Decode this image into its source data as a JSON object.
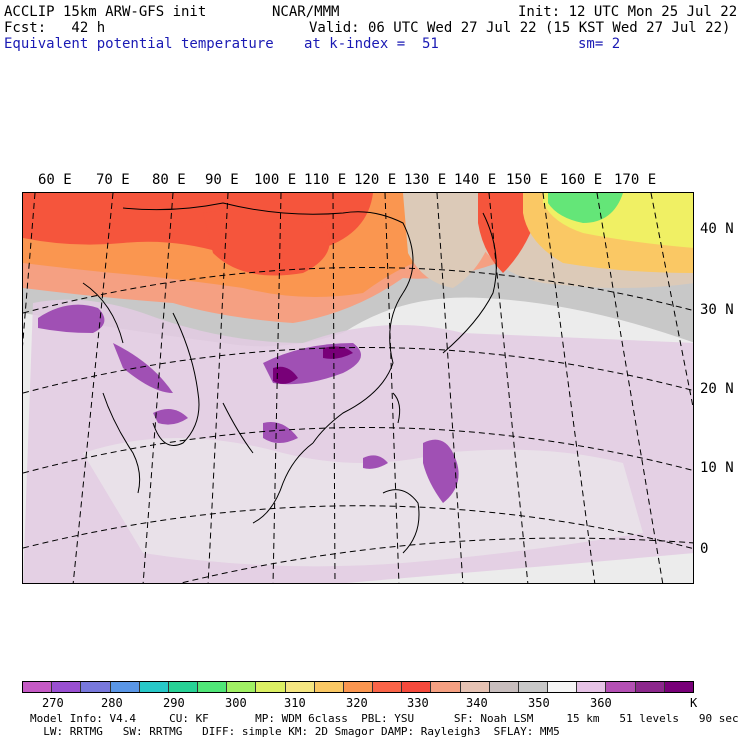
{
  "header": {
    "line1_left": "ACCLIP 15km ARW-GFS init",
    "line1_center": "NCAR/MMM",
    "line1_right": "Init: 12 UTC Mon 25 Jul 22",
    "line2_left": "Fcst:   42 h",
    "line2_right": "Valid: 06 UTC Wed 27 Jul 22 (15 KST Wed 27 Jul 22)",
    "line3_left": "Equivalent potential temperature",
    "line3_center": "at k-index =  51",
    "line3_right": "sm= 2"
  },
  "lon_labels": [
    "60 E",
    "70 E",
    "80 E",
    "90 E",
    "100 E",
    "110 E",
    "120 E",
    "130 E",
    "140 E",
    "150 E",
    "160 E",
    "170 E"
  ],
  "lat_labels": [
    "40 N",
    "30 N",
    "20 N",
    "10 N",
    "0"
  ],
  "colorbar": {
    "colors": [
      "#c55ac5",
      "#9a50d2",
      "#7878dc",
      "#5a96e6",
      "#28c8c8",
      "#28d296",
      "#50e678",
      "#a0f064",
      "#dcf064",
      "#f5e682",
      "#fac864",
      "#fa9650",
      "#fa6448",
      "#f54a3c",
      "#f5a082",
      "#e6c3b4",
      "#c8bebe",
      "#c8c8c8",
      "#f5f5f5",
      "#e6c3e6",
      "#b450b4",
      "#8c288c",
      "#780078"
    ],
    "labels": [
      "270",
      "280",
      "290",
      "300",
      "310",
      "320",
      "330",
      "340",
      "350",
      "360",
      "K"
    ]
  },
  "footer": {
    "line1": "Model Info: V4.4     CU: KF       MP: WDM 6class  PBL: YSU      SF: Noah LSM     15 km   51 levels   90 sec",
    "line2": "  LW: RRTMG   SW: RRTMG   DIFF: simple KM: 2D Smagor DAMP: Rayleigh3  SFLAY: MM5"
  },
  "map_colors": {
    "hot": "#f5553c",
    "warm": "#fa9650",
    "peach": "#f5a082",
    "tan": "#dccab8",
    "gray": "#c8c8c8",
    "light": "#ededed",
    "lilac": "#dcbedc",
    "purple": "#a050b4",
    "dark_purple": "#780078",
    "green": "#64e678",
    "yellow": "#f0f064",
    "orange_light": "#fac864"
  }
}
